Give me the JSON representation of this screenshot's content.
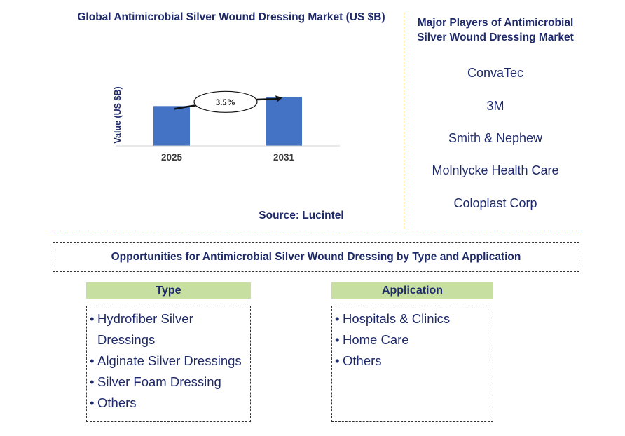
{
  "chart_data": {
    "type": "bar",
    "title": "Global Antimicrobial Silver Wound Dressing Market (US $B)",
    "ylabel": "Value (US $B)",
    "xlabel": "",
    "categories": [
      "2025",
      "2031"
    ],
    "values": [
      1.0,
      1.23
    ],
    "ylim": [
      0,
      1.5
    ],
    "annotation": "3.5%",
    "bar_color": "#4472c4",
    "grid": false
  },
  "source": "Source: Lucintel",
  "players": {
    "title": "Major Players of Antimicrobial Silver Wound Dressing Market",
    "list": [
      "ConvaTec",
      "3M",
      "Smith & Nephew",
      "Molnlycke Health Care",
      "Coloplast Corp"
    ]
  },
  "opportunities": {
    "title": "Opportunities for Antimicrobial Silver Wound Dressing by Type and Application",
    "type": {
      "heading": "Type",
      "items": [
        "Hydrofiber Silver Dressings",
        "Alginate Silver Dressings",
        "Silver Foam Dressing",
        "Others"
      ]
    },
    "application": {
      "heading": "Application",
      "items": [
        "Hospitals & Clinics",
        "Home Care",
        "Others"
      ]
    }
  },
  "colors": {
    "text": "#1f2a6b",
    "header_fill": "#c7e0a1",
    "separator": "#e8b46a"
  }
}
